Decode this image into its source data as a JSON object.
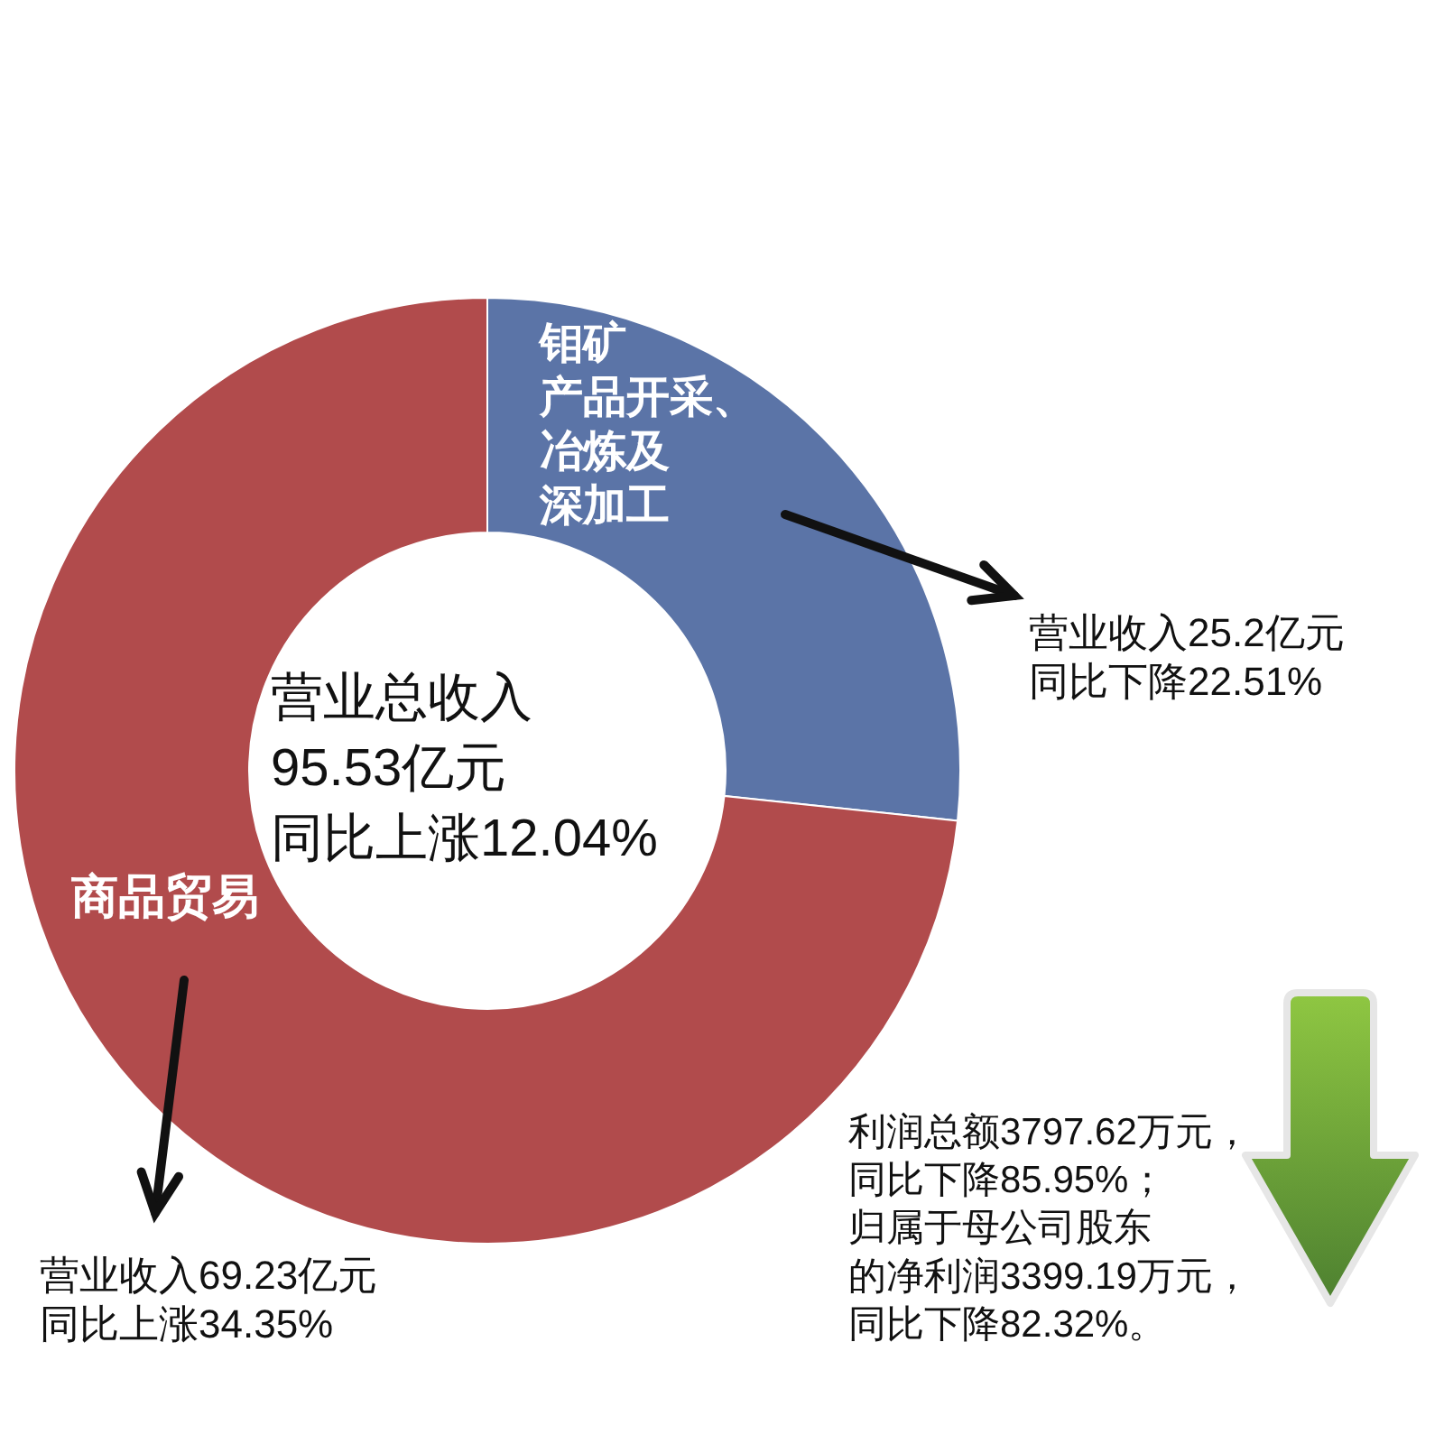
{
  "chart_data": {
    "type": "donut",
    "categories": [
      "钼矿产品开采、冶炼及深加工",
      "商品贸易"
    ],
    "values": [
      25.2,
      69.23
    ],
    "colors": [
      "#5b74a7",
      "#b14b4c"
    ],
    "value_labels": [
      "营业收入25.2亿元同比下降22.51%",
      "营业收入69.23亿元同比上涨34.35%"
    ],
    "annotations": [
      "营业总收入95.53亿元同比上涨12.04%",
      "利润总额3797.62万元，同比下降85.95%；归属于母公司股东的净利润3399.19万元，同比下降82.32%。"
    ]
  }
}
